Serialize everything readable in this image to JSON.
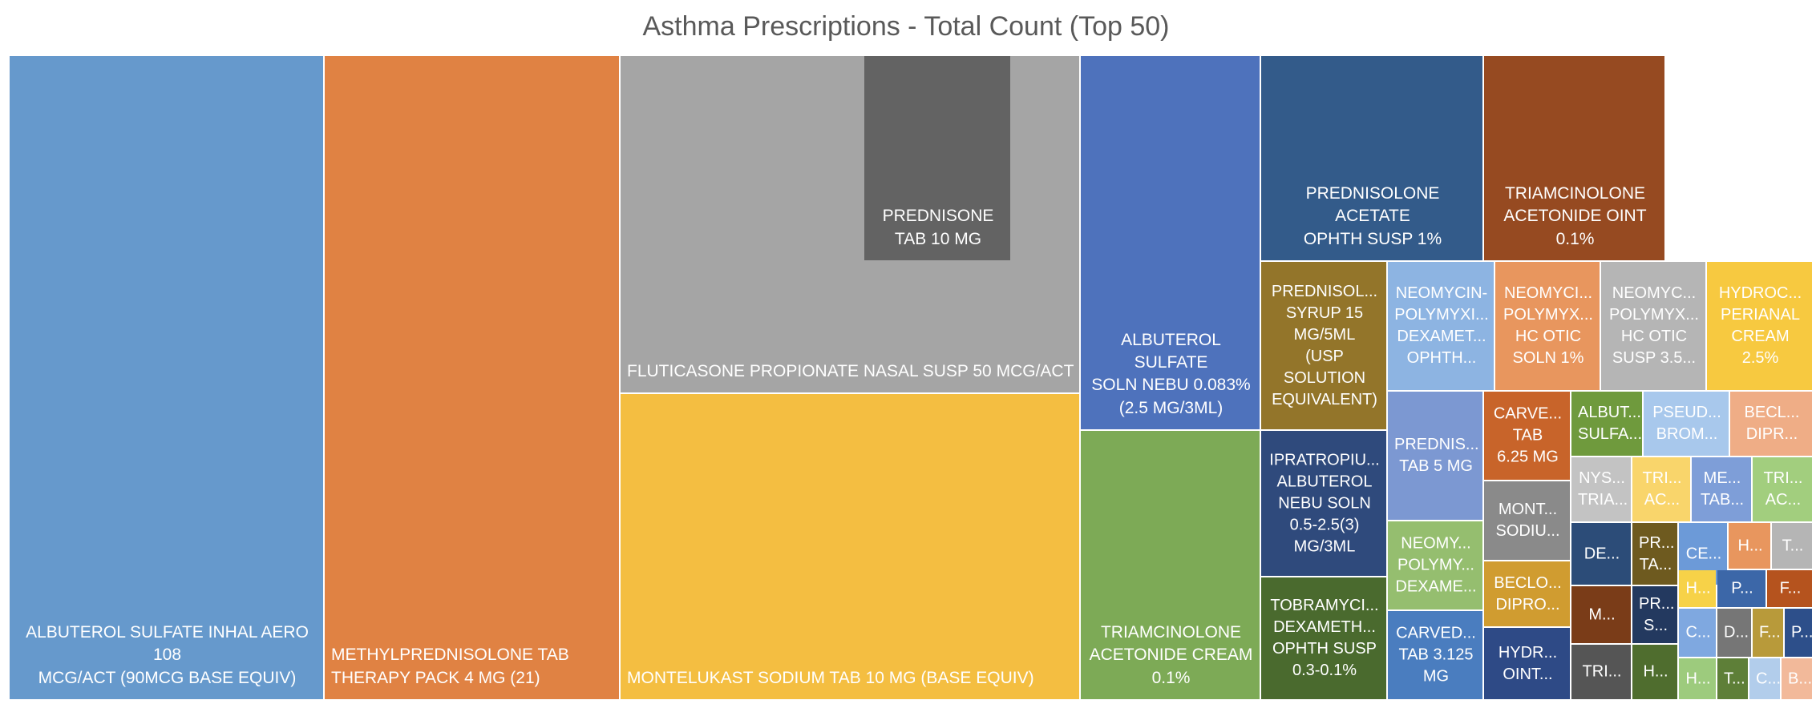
{
  "chart_data": {
    "type": "treemap",
    "title": "Asthma Prescriptions - Total Count (Top 50)",
    "items": [
      {
        "label": "ALBUTEROL SULFATE INHAL AERO 108\nMCG/ACT (90MCG BASE EQUIV)",
        "color": "#6699CC"
      },
      {
        "label": "METHYLPREDNISOLONE TAB\nTHERAPY PACK 4 MG (21)",
        "color": "#E08243"
      },
      {
        "label": "FLUTICASONE PROPIONATE NASAL SUSP 50 MCG/ACT",
        "color": "#A5A5A5"
      },
      {
        "label": "MONTELUKAST SODIUM TAB 10 MG (BASE EQUIV)",
        "color": "#F4BE41"
      },
      {
        "label": "ALBUTEROL SULFATE\nSOLN NEBU 0.083%\n(2.5 MG/3ML)",
        "color": "#4E72BC"
      },
      {
        "label": "TRIAMCINOLONE\nACETONIDE CREAM\n0.1%",
        "color": "#7DAA56"
      },
      {
        "label": "PREDNISOLONE ACETATE\nOPHTH SUSP 1%",
        "color": "#335B8A"
      },
      {
        "label": "TRIAMCINOLONE\nACETONIDE OINT\n0.1%",
        "color": "#964A21"
      },
      {
        "label": "PREDNISONE\nTAB 10 MG",
        "color": "#636363"
      },
      {
        "label": "PREDNISOL...\nSYRUP 15\nMG/5ML\n(USP\nSOLUTION\nEQUIVALENT)",
        "color": "#93752A"
      },
      {
        "label": "NEOMYCIN-\nPOLYMYXI...\nDEXAMET...\nOPHTH...",
        "color": "#8DB4E2"
      },
      {
        "label": "NEOMYCI...\nPOLYMYX...\nHC OTIC\nSOLN 1%",
        "color": "#E8965E"
      },
      {
        "label": "NEOMYC...\nPOLYMYX...\nHC OTIC\nSUSP 3.5...",
        "color": "#B5B5B5"
      },
      {
        "label": "HYDROC...\nPERIANAL\nCREAM\n2.5%",
        "color": "#F7C940"
      },
      {
        "label": "IPRATROPIU...\nALBUTEROL\nNEBU SOLN\n0.5-2.5(3)\nMG/3ML",
        "color": "#2F4A7C"
      },
      {
        "label": "PREDNIS...\nTAB 5 MG",
        "color": "#7C98D2"
      },
      {
        "label": "CARVE...\nTAB\n6.25 MG",
        "color": "#C8642A"
      },
      {
        "label": "ALBUT...\nSULFA...",
        "color": "#6F9A3D"
      },
      {
        "label": "PSEUD...\nBROM...",
        "color": "#A8C8EC"
      },
      {
        "label": "BECL...\nDIPR...",
        "color": "#EFAD86"
      },
      {
        "label": "NYS...\nTRIA...",
        "color": "#C3C3C3"
      },
      {
        "label": "TRI...\nAC...",
        "color": "#F9D56B"
      },
      {
        "label": "ME...\nTAB...",
        "color": "#7E9ED8"
      },
      {
        "label": "TRI...\nAC...",
        "color": "#A2CE7E"
      },
      {
        "label": "MONT...\nSODIU...",
        "color": "#8A8A8A"
      },
      {
        "label": "NEOMY...\nPOLYMY...\nDEXAME...",
        "color": "#95BE6F"
      },
      {
        "label": "DE...",
        "color": "#2C4C78"
      },
      {
        "label": "PR...\nTA...",
        "color": "#6E5A1F"
      },
      {
        "label": "CE...",
        "color": "#6C9AD8"
      },
      {
        "label": "H...",
        "color": "#E8965E"
      },
      {
        "label": "T...",
        "color": "#B5B5B5"
      },
      {
        "label": "TOBRAMYCI...\nDEXAMETH...\nOPHTH SUSP\n0.3-0.1%",
        "color": "#4A6A2E"
      },
      {
        "label": "BECLO...\nDIPRO...",
        "color": "#D09C30"
      },
      {
        "label": "M...",
        "color": "#7A3C18"
      },
      {
        "label": "PR...\nS...",
        "color": "#23395F"
      },
      {
        "label": "H...",
        "color": "#F7D248"
      },
      {
        "label": "P...",
        "color": "#3C67A8"
      },
      {
        "label": "F...",
        "color": "#B5531E"
      },
      {
        "label": "CARVED...\nTAB 3.125\nMG",
        "color": "#4A7DBF"
      },
      {
        "label": "HYDR...\nOINT...",
        "color": "#2E4A86"
      },
      {
        "label": "TRI...",
        "color": "#555555"
      },
      {
        "label": "C...",
        "color": "#7FA8E0"
      },
      {
        "label": "D...",
        "color": "#767676"
      },
      {
        "label": "F...",
        "color": "#B89A3A"
      },
      {
        "label": "P...",
        "color": "#2D4F8A"
      },
      {
        "label": "H...",
        "color": "#4F6D2E"
      },
      {
        "label": "H...",
        "color": "#9DCB7D"
      },
      {
        "label": "T...",
        "color": "#5E7F38"
      },
      {
        "label": "C...",
        "color": "#B2CDEB"
      },
      {
        "label": "B...",
        "color": "#F2B99A"
      }
    ]
  }
}
